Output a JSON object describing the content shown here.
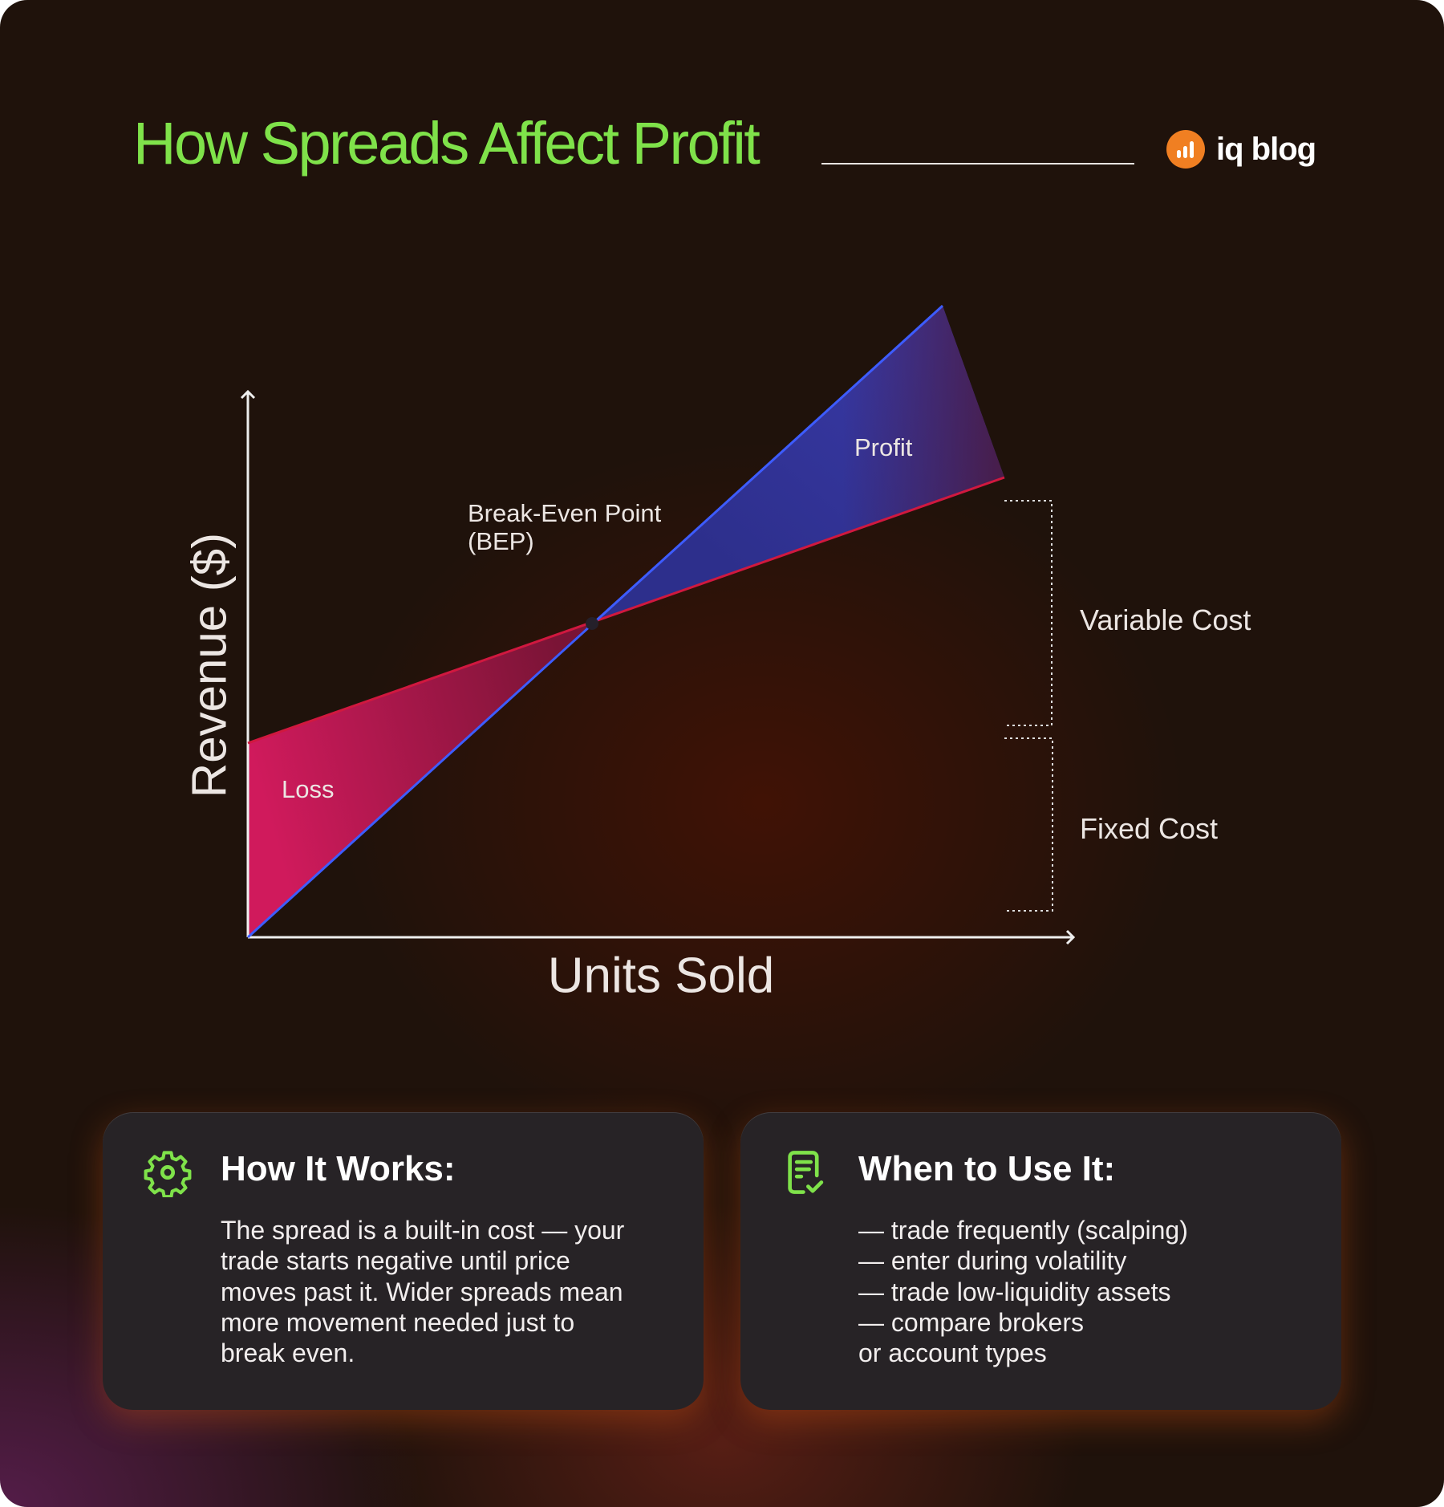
{
  "header": {
    "title": "How Spreads Affect Profit",
    "logo": {
      "icon": "bar-chart-icon",
      "text": "iq blog",
      "color": "#f07f22"
    }
  },
  "diagram": {
    "type": "break-even chart",
    "y_axis_label": "Revenue ($)",
    "x_axis_label": "Units Sold",
    "revenue_line_color": "#3d5cff",
    "cost_line_color": "#d0183f",
    "regions": {
      "profit": "Profit",
      "loss": "Loss"
    },
    "bep_label": [
      "Break-Even Point",
      "(BEP)"
    ],
    "brackets": {
      "variable": "Variable Cost",
      "fixed": "Fixed Cost"
    }
  },
  "cards": [
    {
      "icon": "gear-icon",
      "title": "How It Works:",
      "lines": [
        "The spread is a built-in cost — your",
        "trade starts negative until price",
        "moves past it. Wider spreads mean",
        "more movement needed just to",
        "break even."
      ]
    },
    {
      "icon": "checklist-icon",
      "title": "When to Use It:",
      "lines": [
        "— trade frequently (scalping)",
        "— enter during volatility",
        "— trade low-liquidity assets",
        "— compare brokers",
        "or account types"
      ]
    }
  ],
  "accent_color": "#7fe24a"
}
